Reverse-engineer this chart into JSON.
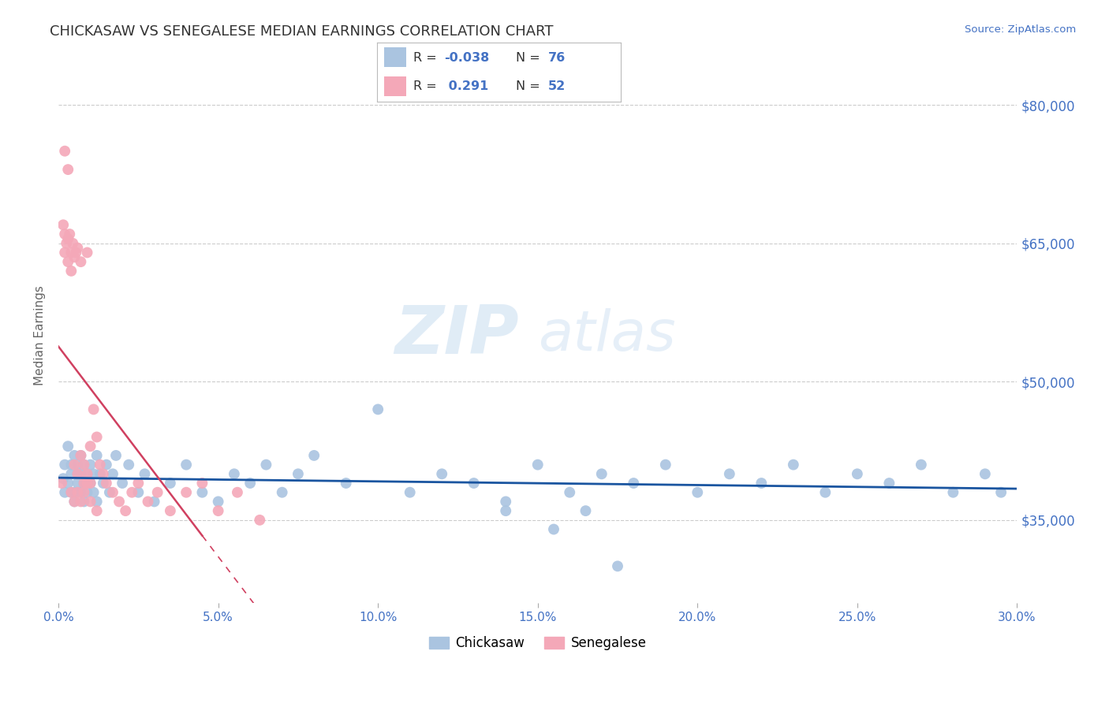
{
  "title": "CHICKASAW VS SENEGALESE MEDIAN EARNINGS CORRELATION CHART",
  "source_text": "Source: ZipAtlas.com",
  "ylabel": "Median Earnings",
  "xlim": [
    0.0,
    0.3
  ],
  "ylim": [
    26000,
    84000
  ],
  "xticks": [
    0.0,
    0.05,
    0.1,
    0.15,
    0.2,
    0.25,
    0.3
  ],
  "xticklabels": [
    "0.0%",
    "5.0%",
    "10.0%",
    "15.0%",
    "20.0%",
    "25.0%",
    "30.0%"
  ],
  "yticks": [
    35000,
    50000,
    65000,
    80000
  ],
  "yticklabels": [
    "$35,000",
    "$50,000",
    "$65,000",
    "$80,000"
  ],
  "title_color": "#333333",
  "axis_color": "#4472C4",
  "watermark_zip": "ZIP",
  "watermark_atlas": "atlas",
  "chickasaw_color": "#aac4e0",
  "senegalese_color": "#f4a8b8",
  "chickasaw_line_color": "#1a55a0",
  "senegalese_line_color": "#d04060",
  "chickasaw_x": [
    0.0015,
    0.002,
    0.002,
    0.003,
    0.003,
    0.004,
    0.004,
    0.004,
    0.005,
    0.005,
    0.005,
    0.006,
    0.006,
    0.006,
    0.007,
    0.007,
    0.007,
    0.008,
    0.008,
    0.008,
    0.009,
    0.009,
    0.01,
    0.01,
    0.011,
    0.011,
    0.012,
    0.012,
    0.013,
    0.014,
    0.015,
    0.016,
    0.017,
    0.018,
    0.02,
    0.022,
    0.025,
    0.027,
    0.03,
    0.035,
    0.04,
    0.045,
    0.05,
    0.055,
    0.06,
    0.065,
    0.07,
    0.075,
    0.08,
    0.09,
    0.1,
    0.11,
    0.12,
    0.13,
    0.14,
    0.15,
    0.16,
    0.17,
    0.18,
    0.19,
    0.2,
    0.21,
    0.22,
    0.23,
    0.24,
    0.25,
    0.26,
    0.27,
    0.28,
    0.29,
    0.295,
    0.14,
    0.155,
    0.165,
    0.175
  ],
  "chickasaw_y": [
    39500,
    41000,
    38000,
    43000,
    39000,
    41000,
    38000,
    40000,
    42000,
    38000,
    37000,
    40000,
    39000,
    41000,
    38000,
    42000,
    40000,
    39000,
    41000,
    37000,
    40000,
    38000,
    41000,
    39000,
    40000,
    38000,
    42000,
    37000,
    40000,
    39000,
    41000,
    38000,
    40000,
    42000,
    39000,
    41000,
    38000,
    40000,
    37000,
    39000,
    41000,
    38000,
    37000,
    40000,
    39000,
    41000,
    38000,
    40000,
    42000,
    39000,
    47000,
    38000,
    40000,
    39000,
    37000,
    41000,
    38000,
    40000,
    39000,
    41000,
    38000,
    40000,
    39000,
    41000,
    38000,
    40000,
    39000,
    41000,
    38000,
    40000,
    38000,
    36000,
    34000,
    36000,
    30000
  ],
  "senegalese_x": [
    0.001,
    0.0015,
    0.002,
    0.002,
    0.0025,
    0.003,
    0.003,
    0.0035,
    0.004,
    0.004,
    0.0045,
    0.005,
    0.005,
    0.0055,
    0.006,
    0.006,
    0.007,
    0.007,
    0.008,
    0.008,
    0.009,
    0.009,
    0.01,
    0.01,
    0.011,
    0.012,
    0.013,
    0.014,
    0.015,
    0.017,
    0.019,
    0.021,
    0.023,
    0.025,
    0.028,
    0.031,
    0.035,
    0.04,
    0.045,
    0.05,
    0.056,
    0.063,
    0.002,
    0.003,
    0.004,
    0.005,
    0.006,
    0.007,
    0.008,
    0.009,
    0.01,
    0.012
  ],
  "senegalese_y": [
    39000,
    67000,
    66000,
    64000,
    65000,
    65500,
    63000,
    66000,
    64000,
    62000,
    65000,
    63500,
    41000,
    64000,
    40000,
    64500,
    42000,
    63000,
    41000,
    39000,
    64000,
    40000,
    39000,
    43000,
    47000,
    44000,
    41000,
    40000,
    39000,
    38000,
    37000,
    36000,
    38000,
    39000,
    37000,
    38000,
    36000,
    38000,
    39000,
    36000,
    38000,
    35000,
    75000,
    73000,
    38000,
    37000,
    38000,
    37000,
    38000,
    39000,
    37000,
    36000
  ]
}
